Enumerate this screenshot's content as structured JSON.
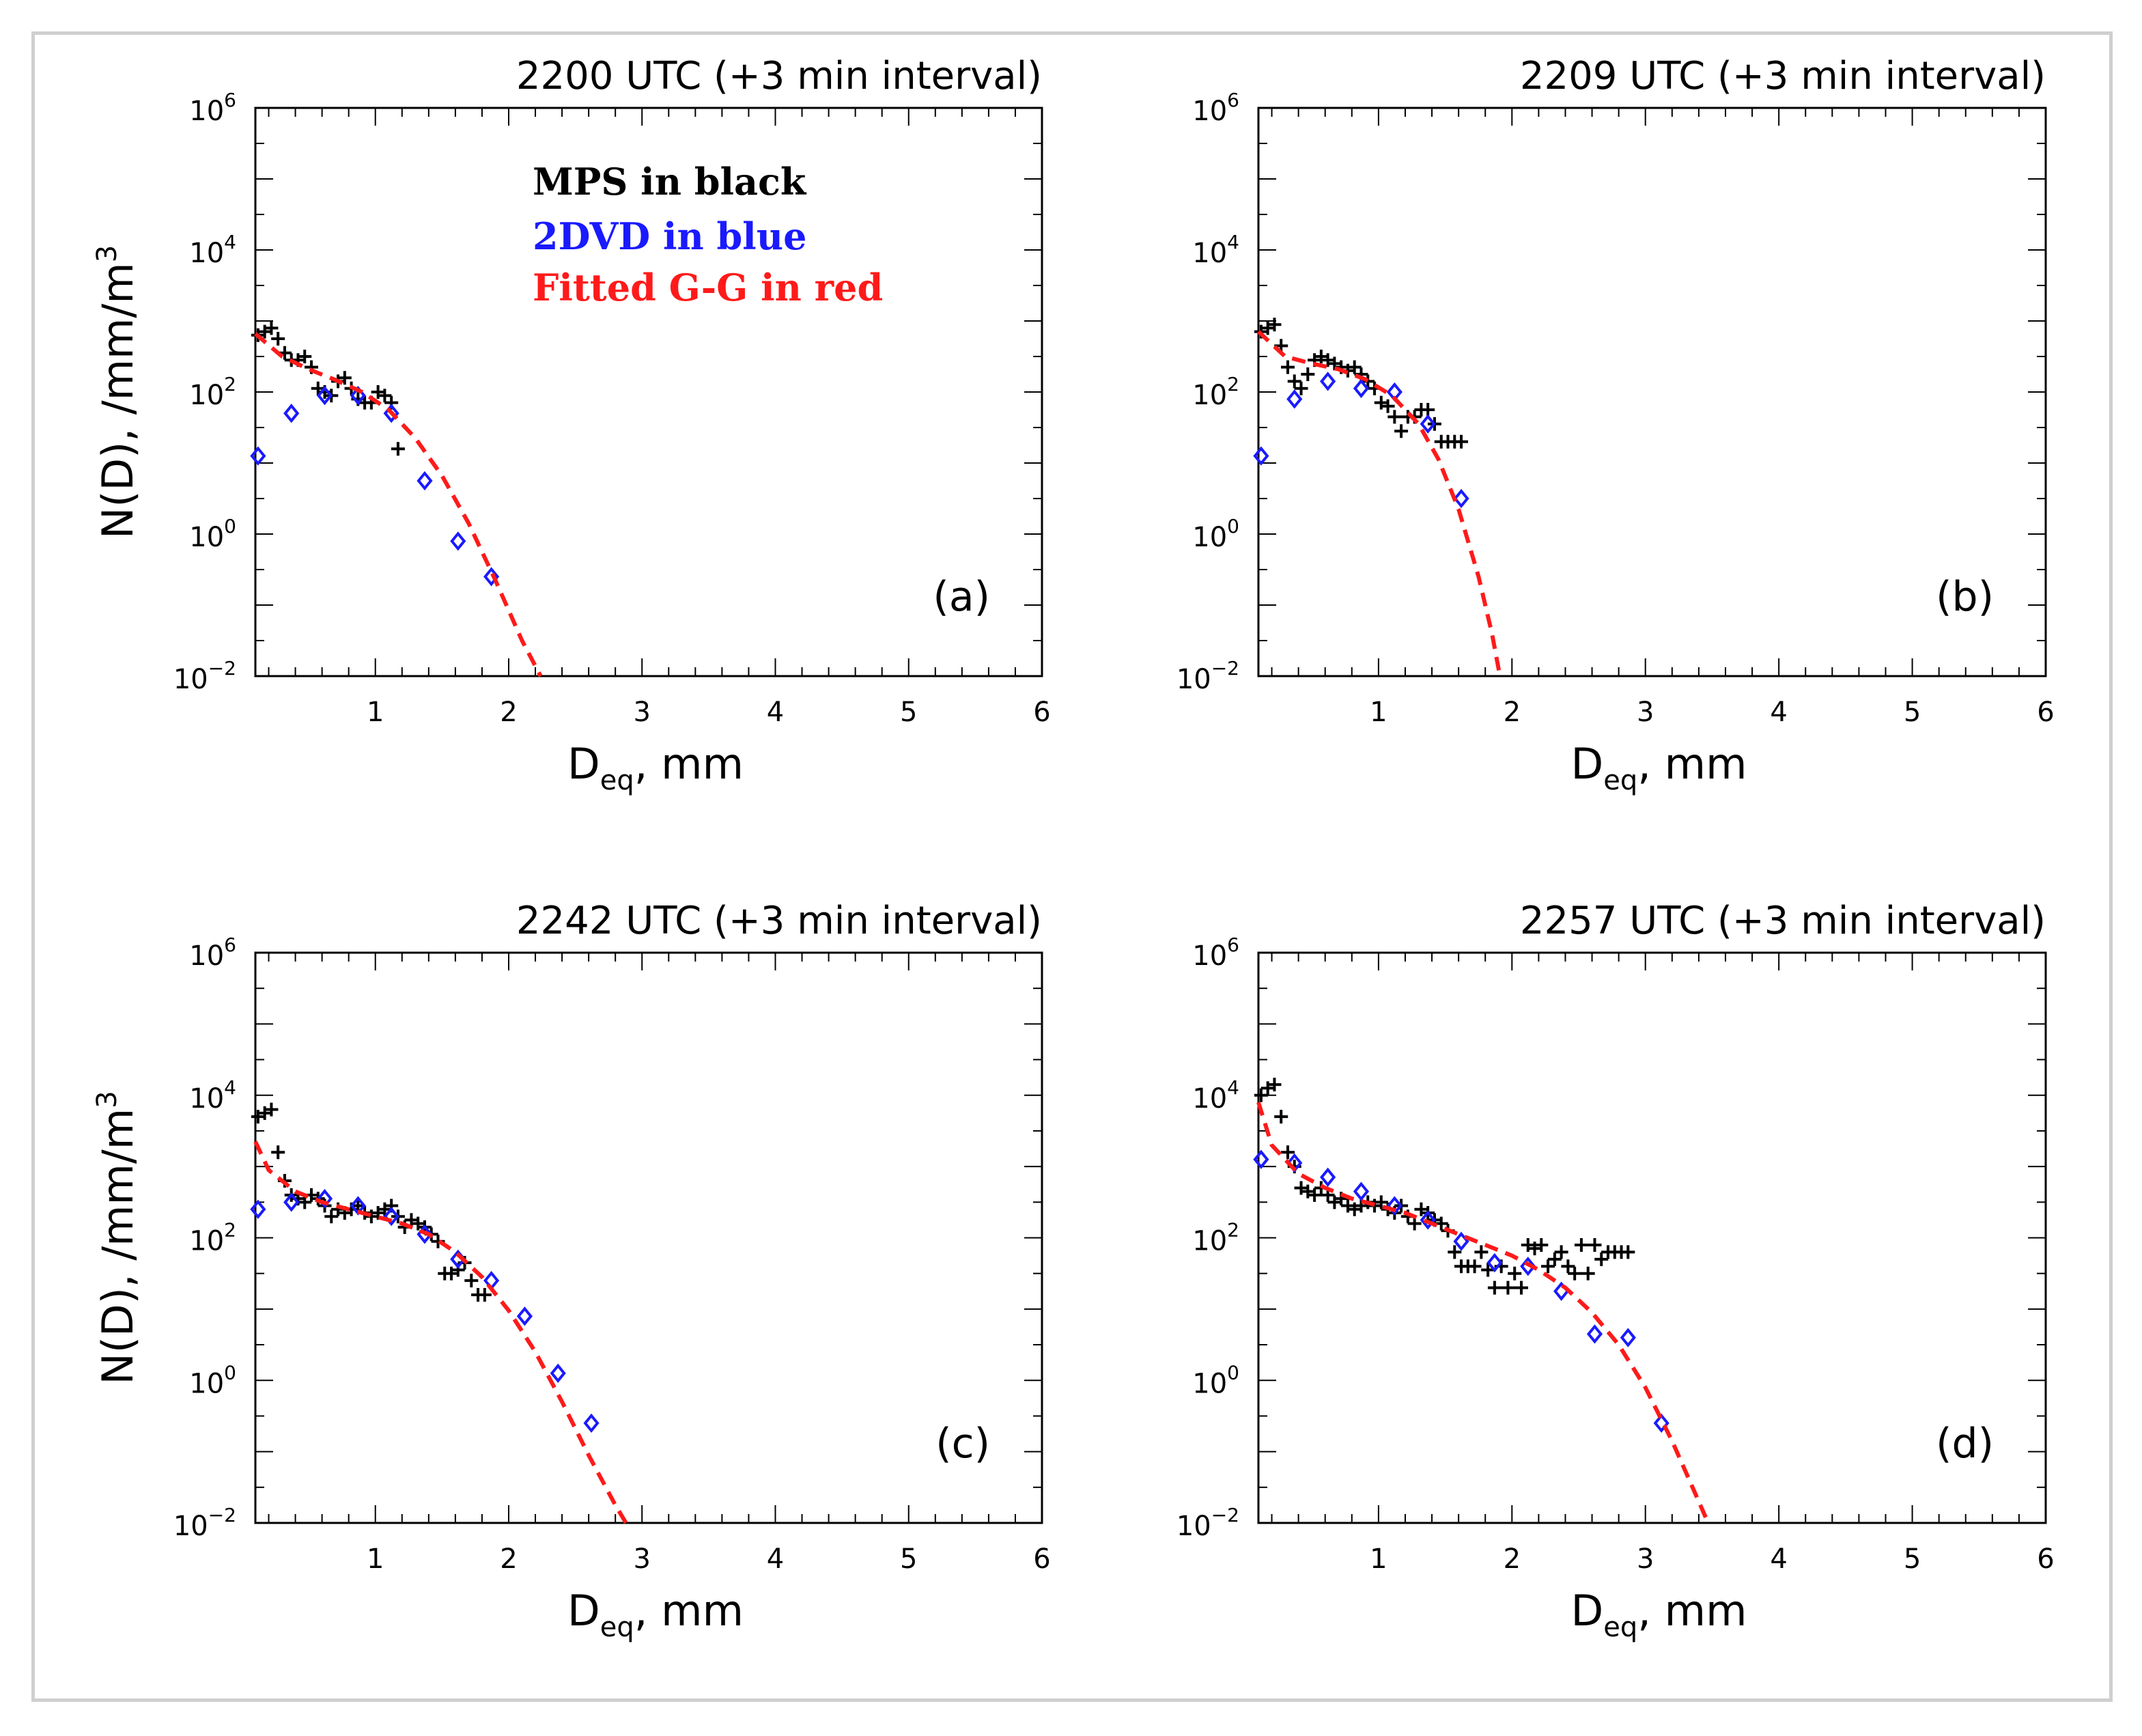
{
  "colors": {
    "mps": "#000000",
    "dvd": "#1a1aff",
    "fit": "#ff1a1a",
    "frame": "#cfcfcf"
  },
  "legend": {
    "mps": "MPS in black",
    "dvd": "2DVD in blue",
    "fit": "Fitted G-G in red"
  },
  "chart_data": [
    {
      "id": "a",
      "type": "scatter",
      "title": "2200  UTC (+3 min interval)",
      "panel_label": "(a)",
      "xlabel_main": "D",
      "xlabel_sub": "eq",
      "xlabel_rest": ", mm",
      "ylabel": "N(D), /mm/m",
      "ylabel_sup": "3",
      "xlim": [
        0.1,
        6
      ],
      "ylim_log10": [
        -2,
        6
      ],
      "xticks": [
        1,
        2,
        3,
        4,
        5,
        6
      ],
      "yticks_log10": [
        -2,
        0,
        2,
        4,
        6
      ],
      "ytick_base": "10",
      "ytick_exp": [
        "−2",
        "0",
        "2",
        "4",
        "6"
      ],
      "series": [
        {
          "name": "MPS",
          "marker": "plus",
          "x": [
            0.12,
            0.17,
            0.22,
            0.27,
            0.32,
            0.37,
            0.42,
            0.47,
            0.52,
            0.57,
            0.62,
            0.67,
            0.72,
            0.77,
            0.82,
            0.87,
            0.92,
            0.97,
            1.02,
            1.07,
            1.12,
            1.17
          ],
          "log_y": [
            2.8,
            2.85,
            2.9,
            2.75,
            2.55,
            2.45,
            2.45,
            2.5,
            2.35,
            2.05,
            2.0,
            1.95,
            2.15,
            2.2,
            2.05,
            1.9,
            1.85,
            1.85,
            2.0,
            1.95,
            1.85,
            1.2
          ]
        },
        {
          "name": "2DVD",
          "marker": "diamond",
          "x": [
            0.12,
            0.37,
            0.62,
            0.87,
            1.12,
            1.37,
            1.62,
            1.87
          ],
          "log_y": [
            1.1,
            1.7,
            1.95,
            1.95,
            1.7,
            0.75,
            -0.1,
            -0.6
          ]
        },
        {
          "name": "Fitted G-G",
          "marker": "dashed",
          "x": [
            0.1,
            0.3,
            0.5,
            0.7,
            0.9,
            1.1,
            1.3,
            1.5,
            1.7,
            1.9,
            2.1,
            2.24
          ],
          "log_y": [
            2.82,
            2.5,
            2.32,
            2.17,
            2.0,
            1.75,
            1.35,
            0.82,
            0.15,
            -0.65,
            -1.5,
            -2.0
          ]
        }
      ]
    },
    {
      "id": "b",
      "type": "scatter",
      "title": "2209  UTC (+3 min interval)",
      "panel_label": "(b)",
      "xlabel_main": "D",
      "xlabel_sub": "eq",
      "xlabel_rest": ", mm",
      "ylabel": "",
      "ylabel_sup": "",
      "xlim": [
        0.1,
        6
      ],
      "ylim_log10": [
        -2,
        6
      ],
      "xticks": [
        1,
        2,
        3,
        4,
        5,
        6
      ],
      "yticks_log10": [
        -2,
        0,
        2,
        4,
        6
      ],
      "ytick_base": "10",
      "ytick_exp": [
        "−2",
        "0",
        "2",
        "4",
        "6"
      ],
      "series": [
        {
          "name": "MPS",
          "marker": "plus",
          "x": [
            0.12,
            0.17,
            0.22,
            0.27,
            0.32,
            0.37,
            0.42,
            0.47,
            0.52,
            0.57,
            0.62,
            0.67,
            0.72,
            0.77,
            0.82,
            0.87,
            0.92,
            0.97,
            1.02,
            1.07,
            1.12,
            1.17,
            1.22,
            1.27,
            1.32,
            1.37,
            1.42,
            1.47,
            1.52,
            1.57,
            1.62
          ],
          "log_y": [
            2.85,
            2.9,
            2.95,
            2.65,
            2.35,
            2.15,
            2.05,
            2.25,
            2.45,
            2.5,
            2.45,
            2.4,
            2.35,
            2.3,
            2.35,
            2.25,
            2.15,
            2.05,
            1.85,
            1.8,
            1.65,
            1.45,
            1.65,
            1.65,
            1.75,
            1.75,
            1.55,
            1.3,
            1.3,
            1.3,
            1.3
          ]
        },
        {
          "name": "2DVD",
          "marker": "diamond",
          "x": [
            0.12,
            0.37,
            0.62,
            0.87,
            1.12,
            1.37,
            1.62
          ],
          "log_y": [
            1.1,
            1.9,
            2.15,
            2.05,
            2.0,
            1.55,
            0.5
          ]
        },
        {
          "name": "Fitted G-G",
          "marker": "dashed",
          "x": [
            0.1,
            0.3,
            0.5,
            0.7,
            0.9,
            1.1,
            1.3,
            1.45,
            1.6,
            1.75,
            1.85,
            1.91
          ],
          "log_y": [
            2.85,
            2.5,
            2.4,
            2.32,
            2.18,
            1.95,
            1.55,
            1.05,
            0.35,
            -0.6,
            -1.4,
            -2.0
          ]
        }
      ]
    },
    {
      "id": "c",
      "type": "scatter",
      "title": "2242  UTC (+3 min interval)",
      "panel_label": "(c)",
      "xlabel_main": "D",
      "xlabel_sub": "eq",
      "xlabel_rest": ", mm",
      "ylabel": "N(D), /mm/m",
      "ylabel_sup": "3",
      "xlim": [
        0.1,
        6
      ],
      "ylim_log10": [
        -2,
        6
      ],
      "xticks": [
        1,
        2,
        3,
        4,
        5,
        6
      ],
      "yticks_log10": [
        -2,
        0,
        2,
        4,
        6
      ],
      "ytick_base": "10",
      "ytick_exp": [
        "−2",
        "0",
        "2",
        "4",
        "6"
      ],
      "series": [
        {
          "name": "MPS",
          "marker": "plus",
          "x": [
            0.12,
            0.17,
            0.22,
            0.27,
            0.32,
            0.37,
            0.42,
            0.47,
            0.52,
            0.57,
            0.62,
            0.67,
            0.72,
            0.77,
            0.82,
            0.87,
            0.92,
            0.97,
            1.02,
            1.07,
            1.12,
            1.17,
            1.22,
            1.27,
            1.32,
            1.37,
            1.42,
            1.47,
            1.52,
            1.57,
            1.62,
            1.67,
            1.72,
            1.77,
            1.82
          ],
          "log_y": [
            3.7,
            3.75,
            3.8,
            3.2,
            2.8,
            2.6,
            2.55,
            2.5,
            2.6,
            2.55,
            2.45,
            2.3,
            2.4,
            2.35,
            2.4,
            2.45,
            2.35,
            2.3,
            2.35,
            2.4,
            2.45,
            2.3,
            2.15,
            2.25,
            2.2,
            2.15,
            2.05,
            1.95,
            1.5,
            1.5,
            1.55,
            1.65,
            1.4,
            1.2,
            1.2
          ]
        },
        {
          "name": "2DVD",
          "marker": "diamond",
          "x": [
            0.12,
            0.37,
            0.62,
            0.87,
            1.12,
            1.37,
            1.62,
            1.87,
            2.12,
            2.37,
            2.62
          ],
          "log_y": [
            2.4,
            2.5,
            2.55,
            2.45,
            2.3,
            2.05,
            1.7,
            1.4,
            0.9,
            0.1,
            -0.6
          ]
        },
        {
          "name": "Fitted G-G",
          "marker": "dashed",
          "x": [
            0.1,
            0.2,
            0.4,
            0.6,
            0.8,
            1.0,
            1.2,
            1.4,
            1.6,
            1.8,
            2.0,
            2.2,
            2.4,
            2.6,
            2.8,
            2.88
          ],
          "log_y": [
            3.35,
            2.95,
            2.65,
            2.5,
            2.4,
            2.3,
            2.2,
            2.05,
            1.8,
            1.45,
            0.98,
            0.4,
            -0.3,
            -1.05,
            -1.75,
            -2.0
          ]
        }
      ]
    },
    {
      "id": "d",
      "type": "scatter",
      "title": "2257  UTC (+3 min interval)",
      "panel_label": "(d)",
      "xlabel_main": "D",
      "xlabel_sub": "eq",
      "xlabel_rest": ", mm",
      "ylabel": "",
      "ylabel_sup": "",
      "xlim": [
        0.1,
        6
      ],
      "ylim_log10": [
        -2,
        6
      ],
      "xticks": [
        1,
        2,
        3,
        4,
        5,
        6
      ],
      "yticks_log10": [
        -2,
        0,
        2,
        4,
        6
      ],
      "ytick_base": "10",
      "ytick_exp": [
        "−2",
        "0",
        "2",
        "4",
        "6"
      ],
      "series": [
        {
          "name": "MPS",
          "marker": "plus",
          "x": [
            0.12,
            0.17,
            0.22,
            0.27,
            0.32,
            0.37,
            0.42,
            0.47,
            0.52,
            0.57,
            0.62,
            0.67,
            0.72,
            0.77,
            0.82,
            0.87,
            0.92,
            0.97,
            1.02,
            1.07,
            1.12,
            1.17,
            1.22,
            1.27,
            1.32,
            1.37,
            1.42,
            1.47,
            1.52,
            1.57,
            1.62,
            1.67,
            1.72,
            1.77,
            1.82,
            1.87,
            1.92,
            1.97,
            2.02,
            2.07,
            2.12,
            2.17,
            2.22,
            2.27,
            2.32,
            2.37,
            2.42,
            2.47,
            2.52,
            2.57,
            2.62,
            2.67,
            2.72,
            2.77,
            2.82,
            2.87
          ],
          "log_y": [
            4.0,
            4.1,
            4.15,
            3.7,
            3.2,
            3.0,
            2.7,
            2.65,
            2.6,
            2.7,
            2.6,
            2.5,
            2.55,
            2.45,
            2.4,
            2.45,
            2.5,
            2.45,
            2.5,
            2.4,
            2.35,
            2.45,
            2.3,
            2.2,
            2.4,
            2.35,
            2.25,
            2.2,
            2.1,
            1.8,
            1.6,
            1.6,
            1.6,
            1.8,
            1.55,
            1.3,
            1.6,
            1.3,
            1.5,
            1.3,
            1.9,
            1.85,
            1.9,
            1.6,
            1.7,
            1.8,
            1.6,
            1.5,
            1.9,
            1.5,
            1.9,
            1.7,
            1.8,
            1.8,
            1.8,
            1.8
          ]
        },
        {
          "name": "2DVD",
          "marker": "diamond",
          "x": [
            0.12,
            0.37,
            0.62,
            0.87,
            1.12,
            1.37,
            1.62,
            1.87,
            2.12,
            2.37,
            2.62,
            2.87,
            3.12
          ],
          "log_y": [
            3.1,
            3.05,
            2.85,
            2.65,
            2.45,
            2.25,
            1.95,
            1.65,
            1.6,
            1.25,
            0.65,
            0.6,
            -0.6
          ]
        },
        {
          "name": "Fitted G-G",
          "marker": "dashed",
          "x": [
            0.1,
            0.2,
            0.4,
            0.6,
            0.8,
            1.0,
            1.2,
            1.4,
            1.6,
            1.8,
            2.0,
            2.2,
            2.4,
            2.6,
            2.8,
            3.0,
            3.2,
            3.4,
            3.47
          ],
          "log_y": [
            3.9,
            3.3,
            2.9,
            2.7,
            2.55,
            2.45,
            2.35,
            2.2,
            2.05,
            1.9,
            1.75,
            1.55,
            1.3,
            0.95,
            0.5,
            -0.1,
            -0.85,
            -1.7,
            -2.0
          ]
        }
      ]
    }
  ]
}
